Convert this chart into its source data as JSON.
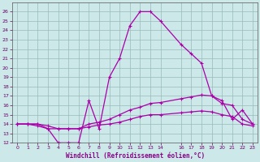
{
  "xlabel": "Windchill (Refroidissement éolien,°C)",
  "bg_color": "#cde8e8",
  "line_color": "#aa00aa",
  "grid_color": "#99bbbb",
  "xlim": [
    -0.5,
    23.5
  ],
  "ylim": [
    12,
    27
  ],
  "xticks": [
    0,
    1,
    2,
    3,
    4,
    5,
    6,
    7,
    8,
    9,
    10,
    11,
    12,
    13,
    14,
    16,
    17,
    18,
    19,
    20,
    21,
    22,
    23
  ],
  "yticks": [
    12,
    13,
    14,
    15,
    16,
    17,
    18,
    19,
    20,
    21,
    22,
    23,
    24,
    25,
    26
  ],
  "line1_x": [
    0,
    1,
    2,
    3,
    4,
    5,
    6,
    7,
    8,
    9,
    10,
    11,
    12,
    13,
    14,
    16,
    17,
    18,
    19,
    20,
    21,
    22,
    23
  ],
  "line1_y": [
    14.0,
    14.0,
    14.0,
    13.5,
    12.0,
    12.0,
    12.0,
    16.5,
    13.5,
    19.0,
    21.0,
    24.5,
    26.0,
    26.0,
    25.0,
    22.5,
    21.5,
    20.5,
    17.0,
    16.5,
    14.5,
    15.5,
    14.0
  ],
  "line2_x": [
    0,
    1,
    2,
    3,
    4,
    5,
    6,
    7,
    8,
    9,
    10,
    11,
    12,
    13,
    14,
    16,
    17,
    18,
    19,
    20,
    21,
    22,
    23
  ],
  "line2_y": [
    14.0,
    14.0,
    14.0,
    13.8,
    13.5,
    13.5,
    13.5,
    14.0,
    14.2,
    14.5,
    15.0,
    15.5,
    15.8,
    16.2,
    16.3,
    16.7,
    16.9,
    17.1,
    17.0,
    16.2,
    16.0,
    14.5,
    14.0
  ],
  "line3_x": [
    0,
    1,
    2,
    3,
    4,
    5,
    6,
    7,
    8,
    9,
    10,
    11,
    12,
    13,
    14,
    16,
    17,
    18,
    19,
    20,
    21,
    22,
    23
  ],
  "line3_y": [
    14.0,
    14.0,
    13.8,
    13.5,
    13.5,
    13.5,
    13.5,
    13.7,
    13.9,
    14.0,
    14.2,
    14.5,
    14.8,
    15.0,
    15.0,
    15.2,
    15.3,
    15.4,
    15.3,
    15.0,
    14.8,
    14.0,
    13.8
  ]
}
